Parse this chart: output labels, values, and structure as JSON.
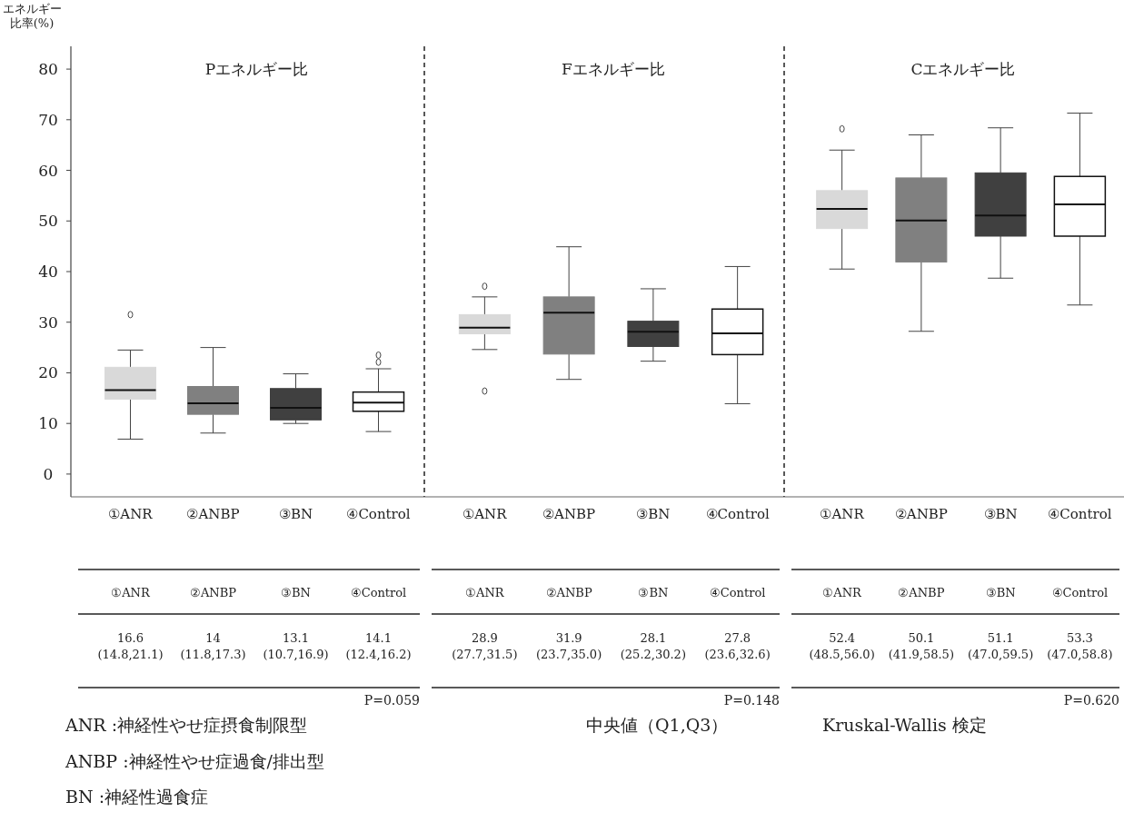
{
  "chart_data": [
    {
      "type": "box",
      "title": "Pエネルギー比",
      "ylabel": "エネルギー比率(%)",
      "categories": [
        "①ANR",
        "②ANBP",
        "③BN",
        "④Control"
      ],
      "colors": [
        "#d9d9d9",
        "#808080",
        "#404040",
        "#ffffff"
      ],
      "ylim": [
        -4.5,
        84.5
      ],
      "yticks": [
        0,
        10,
        20,
        30,
        40,
        50,
        60,
        70,
        80
      ],
      "boxes": [
        {
          "low": 6.9,
          "q1": 14.8,
          "median": 16.6,
          "q3": 21.1,
          "high": 24.5,
          "outliers": [
            31.5
          ]
        },
        {
          "low": 8.1,
          "q1": 11.8,
          "median": 14,
          "q3": 17.3,
          "high": 25.0
        },
        {
          "low": 10.0,
          "q1": 10.7,
          "median": 13.1,
          "q3": 16.9,
          "high": 19.8
        },
        {
          "low": 8.4,
          "q1": 12.4,
          "median": 14.1,
          "q3": 16.2,
          "high": 20.8,
          "outliers": [
            22.1,
            23.5
          ]
        }
      ],
      "value_labels": [
        "16.6\n(14.8,21.1)",
        "14\n(11.8,17.3)",
        "13.1\n(10.7,16.9)",
        "14.1\n(12.4,16.2)"
      ],
      "annotations": [
        "P=0.059"
      ]
    },
    {
      "type": "box",
      "title": "Fエネルギー比",
      "categories": [
        "①ANR",
        "②ANBP",
        "③BN",
        "④Control"
      ],
      "colors": [
        "#d9d9d9",
        "#808080",
        "#404040",
        "#ffffff"
      ],
      "ylim": [
        -4.5,
        84.5
      ],
      "tick_labels": "x",
      "boxes": [
        {
          "low": 24.6,
          "q1": 27.7,
          "median": 28.9,
          "q3": 31.5,
          "high": 35.0,
          "outliers": [
            37.1,
            16.4
          ]
        },
        {
          "low": 18.7,
          "q1": 23.7,
          "median": 31.9,
          "q3": 35.0,
          "high": 44.9
        },
        {
          "low": 22.3,
          "q1": 25.2,
          "median": 28.1,
          "q3": 30.2,
          "high": 36.6
        },
        {
          "low": 13.9,
          "q1": 23.6,
          "median": 27.8,
          "q3": 32.6,
          "high": 41.0
        }
      ],
      "value_labels": [
        "28.9\n(27.7,31.5)",
        "31.9\n(23.7,35.0)",
        "28.1\n(25.2,30.2)",
        "27.8\n(23.6,32.6)"
      ],
      "annotations": [
        "P=0.148"
      ]
    },
    {
      "type": "box",
      "title": "Cエネルギー比",
      "categories": [
        "①ANR",
        "②ANBP",
        "③BN",
        "④Control"
      ],
      "colors": [
        "#d9d9d9",
        "#808080",
        "#404040",
        "#ffffff"
      ],
      "ylim": [
        -4.5,
        84.5
      ],
      "tick_labels": "x",
      "boxes": [
        {
          "low": 40.5,
          "q1": 48.5,
          "median": 52.4,
          "q3": 56.0,
          "high": 64.0,
          "outliers": [
            68.2
          ]
        },
        {
          "low": 28.2,
          "q1": 41.9,
          "median": 50.1,
          "q3": 58.5,
          "high": 67.0
        },
        {
          "low": 38.7,
          "q1": 47.0,
          "median": 51.1,
          "q3": 59.5,
          "high": 68.4
        },
        {
          "low": 33.4,
          "q1": 47.0,
          "median": 53.3,
          "q3": 58.8,
          "high": 71.3
        }
      ],
      "value_labels": [
        "52.4\n(48.5,56.0)",
        "50.1\n(41.9,58.5)",
        "51.1\n(47.0,59.5)",
        "53.3\n(47.0,58.8)"
      ],
      "annotations": [
        "P=0.620"
      ]
    },
    {
      "type": "other",
      "annotations": [
        "ANR :神経性やせ症摂食制限型",
        "ANBP :神経性やせ症過食/排出型",
        "BN :神経性過食症",
        "中央値（Q1,Q3）",
        "Kruskal-Wallis 検定"
      ]
    }
  ]
}
